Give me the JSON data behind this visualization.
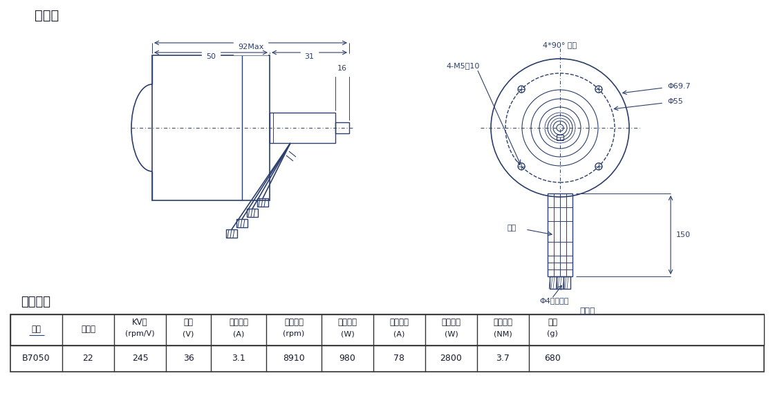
{
  "title_waixing": "外形图",
  "title_xingneng": "性能参数",
  "dim_92max": "92Max",
  "dim_50": "50",
  "dim_31": "31",
  "dim_16": "16",
  "dim_150": "150",
  "dim_phi697": "Φ69.7",
  "dim_phi55": "Φ55",
  "dim_4m5": "4-M5深10",
  "dim_4x90": "4*90° 均布",
  "label_yinxian": "引线",
  "label_xiangtou": "Φ4香蕉插头",
  "label_hongheilan": "红黑蓝",
  "table_headers": [
    "型号",
    "磁极数",
    "KV值\n(rpm/V)",
    "电压\n(V)",
    "空载电流\n(A)",
    "空载转速\n(rpm)",
    "额定功率\n(W)",
    "最大电流\n(A)",
    "最大功率\n(W)",
    "最大扔矩\n(NM)",
    "重量\n(g)"
  ],
  "table_row": [
    "B7050",
    "22",
    "245",
    "36",
    "3.1",
    "8910",
    "980",
    "78",
    "2800",
    "3.7",
    "680"
  ],
  "bg_color": "#ffffff",
  "line_color": "#1a1a2e",
  "draw_color": "#2c3e6b",
  "table_border_color": "#333333",
  "text_color": "#1a1a2e"
}
